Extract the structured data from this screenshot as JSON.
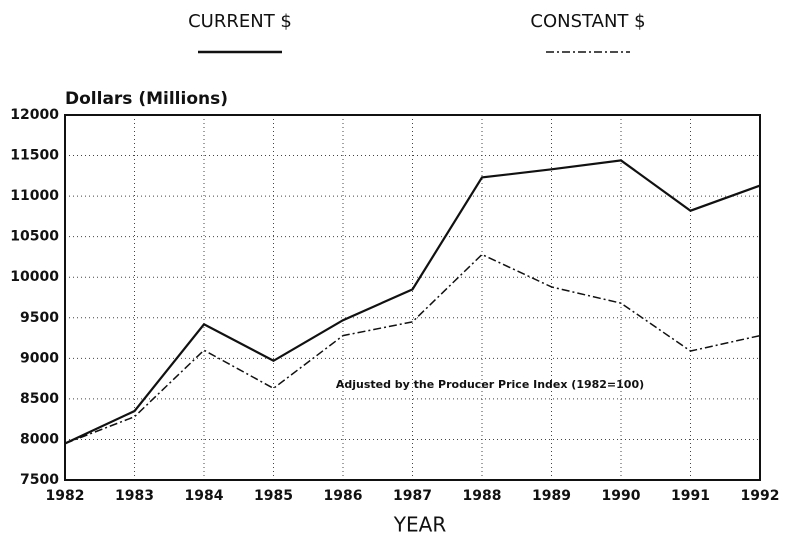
{
  "chart_data": {
    "type": "line",
    "y_label": "Dollars (Millions)",
    "x_label": "YEAR",
    "annotation": "Adjusted by the Producer Price Index (1982=100)",
    "x": [
      1982,
      1983,
      1984,
      1985,
      1986,
      1987,
      1988,
      1989,
      1990,
      1991,
      1992
    ],
    "series": [
      {
        "name": "CURRENT $",
        "color": "#111111",
        "dash": "solid",
        "values": [
          7950,
          8350,
          9420,
          8970,
          9470,
          9850,
          11230,
          11330,
          11440,
          10820,
          11130
        ]
      },
      {
        "name": "CONSTANT $",
        "color": "#111111",
        "dash": "dashdot",
        "values": [
          7950,
          8280,
          9100,
          8630,
          9280,
          9450,
          10280,
          9880,
          9680,
          9090,
          9280
        ]
      }
    ],
    "xlim": [
      1982,
      1992
    ],
    "xticks": [
      1982,
      1983,
      1984,
      1985,
      1986,
      1987,
      1988,
      1989,
      1990,
      1991,
      1992
    ],
    "ylim": [
      7500,
      12000
    ],
    "yticks": [
      7500,
      8000,
      8500,
      9000,
      9500,
      10000,
      10500,
      11000,
      11500,
      12000
    ],
    "grid": true
  }
}
